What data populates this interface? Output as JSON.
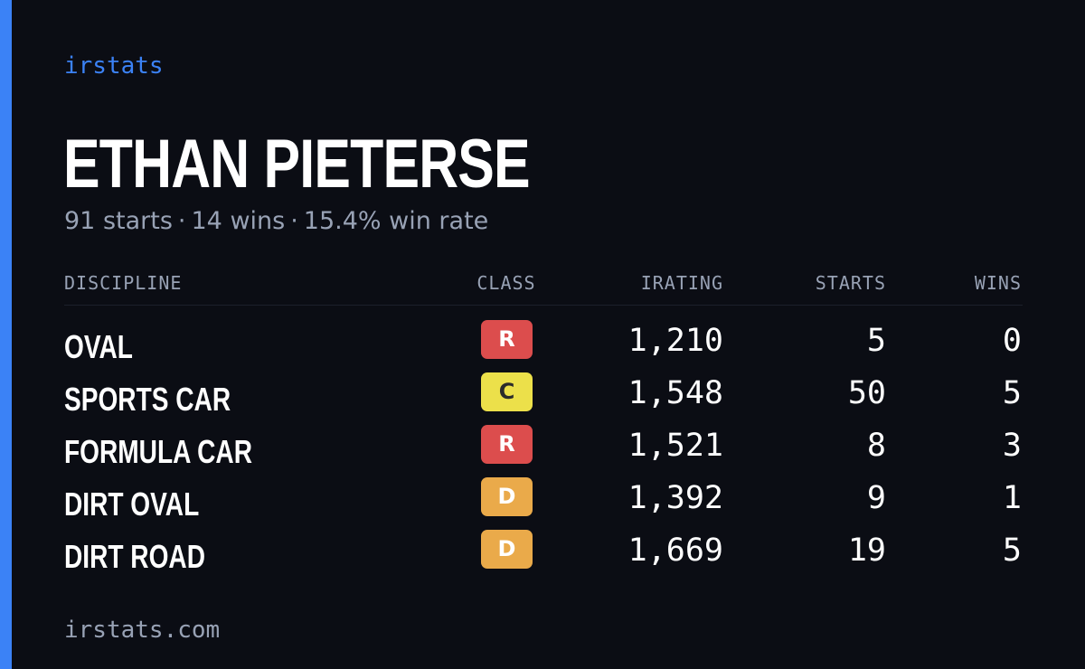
{
  "brand": "irstats",
  "driver": {
    "name": "ETHAN PIETERSE",
    "starts_text": "91 starts",
    "wins_text": "14 wins",
    "win_rate_text": "15.4% win rate",
    "separator": "·"
  },
  "table": {
    "headers": {
      "discipline": "DISCIPLINE",
      "class": "CLASS",
      "irating": "IRATING",
      "starts": "STARTS",
      "wins": "WINS"
    },
    "rows": [
      {
        "discipline": "OVAL",
        "class": "R",
        "class_color": "#dc4d4d",
        "irating": "1,210",
        "starts": "5",
        "wins": "0"
      },
      {
        "discipline": "SPORTS CAR",
        "class": "C",
        "class_color": "#ece04a",
        "irating": "1,548",
        "starts": "50",
        "wins": "5"
      },
      {
        "discipline": "FORMULA CAR",
        "class": "R",
        "class_color": "#dc4d4d",
        "irating": "1,521",
        "starts": "8",
        "wins": "3"
      },
      {
        "discipline": "DIRT OVAL",
        "class": "D",
        "class_color": "#eaaa4a",
        "irating": "1,392",
        "starts": "9",
        "wins": "1"
      },
      {
        "discipline": "DIRT ROAD",
        "class": "D",
        "class_color": "#eaaa4a",
        "irating": "1,669",
        "starts": "19",
        "wins": "5"
      }
    ]
  },
  "footer": "irstats.com",
  "colors": {
    "background": "#0b0d14",
    "accent": "#3b82f6",
    "muted_text": "#98a2b5"
  }
}
